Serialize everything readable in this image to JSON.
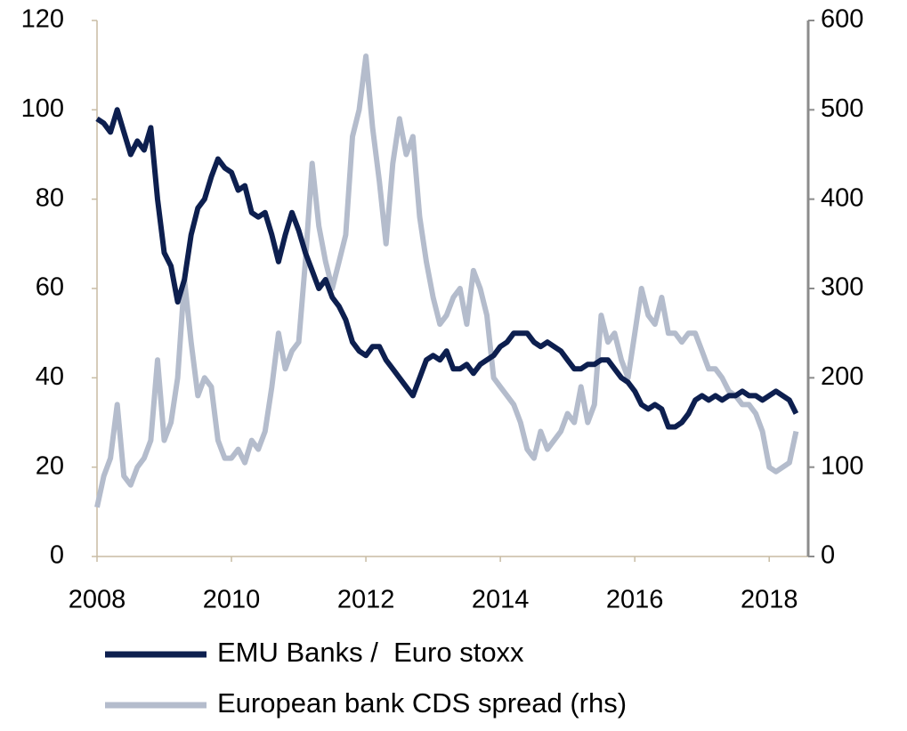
{
  "chart_data": {
    "type": "line",
    "x": [
      2008,
      2008.1,
      2008.2,
      2008.3,
      2008.4,
      2008.5,
      2008.6,
      2008.7,
      2008.8,
      2008.9,
      2009,
      2009.1,
      2009.2,
      2009.3,
      2009.4,
      2009.5,
      2009.6,
      2009.7,
      2009.8,
      2009.9,
      2010,
      2010.1,
      2010.2,
      2010.3,
      2010.4,
      2010.5,
      2010.6,
      2010.7,
      2010.8,
      2010.9,
      2011,
      2011.1,
      2011.2,
      2011.3,
      2011.4,
      2011.5,
      2011.6,
      2011.7,
      2011.8,
      2011.9,
      2012,
      2012.1,
      2012.2,
      2012.3,
      2012.4,
      2012.5,
      2012.6,
      2012.7,
      2012.8,
      2012.9,
      2013,
      2013.1,
      2013.2,
      2013.3,
      2013.4,
      2013.5,
      2013.6,
      2013.7,
      2013.8,
      2013.9,
      2014,
      2014.1,
      2014.2,
      2014.3,
      2014.4,
      2014.5,
      2014.6,
      2014.7,
      2014.8,
      2014.9,
      2015,
      2015.1,
      2015.2,
      2015.3,
      2015.4,
      2015.5,
      2015.6,
      2015.7,
      2015.8,
      2015.9,
      2016,
      2016.1,
      2016.2,
      2016.3,
      2016.4,
      2016.5,
      2016.6,
      2016.7,
      2016.8,
      2016.9,
      2017,
      2017.1,
      2017.2,
      2017.3,
      2017.4,
      2017.5,
      2017.6,
      2017.7,
      2017.8,
      2017.9,
      2018,
      2018.1,
      2018.2,
      2018.3,
      2018.4
    ],
    "series": [
      {
        "name": "EMU Banks /  Euro stoxx",
        "color": "#0d1f4f",
        "axis": "y",
        "values": [
          98,
          97,
          95,
          100,
          95,
          90,
          93,
          91,
          96,
          80,
          68,
          65,
          57,
          62,
          72,
          78,
          80,
          85,
          89,
          87,
          86,
          82,
          83,
          77,
          76,
          77,
          72,
          66,
          72,
          77,
          73,
          68,
          64,
          60,
          62,
          58,
          56,
          53,
          48,
          46,
          45,
          47,
          47,
          44,
          42,
          40,
          38,
          36,
          40,
          44,
          45,
          44,
          46,
          42,
          42,
          43,
          41,
          43,
          44,
          45,
          47,
          48,
          50,
          50,
          50,
          48,
          47,
          48,
          47,
          46,
          44,
          42,
          42,
          43,
          43,
          44,
          44,
          42,
          40,
          39,
          37,
          34,
          33,
          34,
          33,
          29,
          29,
          30,
          32,
          35,
          36,
          35,
          36,
          35,
          36,
          36,
          37,
          36,
          36,
          35,
          36,
          37,
          36,
          35,
          32
        ]
      },
      {
        "name": "European bank CDS spread (rhs)",
        "color": "#b4bccc",
        "axis": "y2",
        "values": [
          55,
          90,
          110,
          170,
          90,
          80,
          100,
          110,
          130,
          220,
          130,
          150,
          200,
          310,
          240,
          180,
          200,
          190,
          130,
          110,
          110,
          120,
          105,
          130,
          120,
          140,
          190,
          250,
          210,
          230,
          240,
          330,
          440,
          370,
          330,
          300,
          330,
          360,
          470,
          500,
          560,
          480,
          420,
          350,
          440,
          490,
          450,
          470,
          380,
          330,
          290,
          260,
          270,
          290,
          300,
          260,
          320,
          300,
          270,
          200,
          190,
          180,
          170,
          150,
          120,
          110,
          140,
          120,
          130,
          140,
          160,
          150,
          190,
          150,
          170,
          270,
          240,
          250,
          220,
          200,
          250,
          300,
          270,
          260,
          290,
          250,
          250,
          240,
          250,
          250,
          230,
          210,
          210,
          200,
          185,
          180,
          170,
          170,
          160,
          140,
          100,
          95,
          100,
          105,
          140
        ]
      }
    ],
    "xlim": [
      2008,
      2018.58
    ],
    "xticks": [
      2008,
      2010,
      2012,
      2014,
      2016,
      2018
    ],
    "ylim": [
      0,
      120
    ],
    "yticks": [
      0,
      20,
      40,
      60,
      80,
      100,
      120
    ],
    "y2lim": [
      0,
      600
    ],
    "y2ticks": [
      0,
      100,
      200,
      300,
      400,
      500,
      600
    ]
  }
}
